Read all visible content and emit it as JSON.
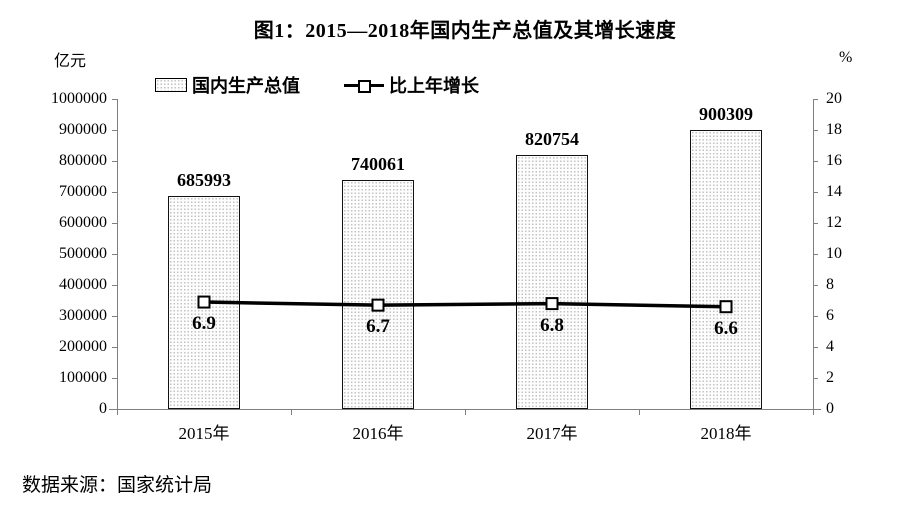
{
  "title": "图1：2015—2018年国内生产总值及其增长速度",
  "source": "数据来源：国家统计局",
  "units": {
    "left": "亿元",
    "right": "%"
  },
  "legend": {
    "bar_label": "国内生产总值",
    "line_label": "比上年增长"
  },
  "colors": {
    "text": "#000000",
    "axis": "#7f7f7f",
    "bar_border": "#111111",
    "bar_fill_base": "#fdfdfd",
    "bar_fill_dots": "#c4c4c4",
    "line": "#000000",
    "marker_fill": "#ffffff"
  },
  "chart_data": {
    "type": "bar",
    "subtype": "bar+line combo",
    "title": "图1：2015—2018年国内生产总值及其增长速度",
    "categories": [
      "2015年",
      "2016年",
      "2017年",
      "2018年"
    ],
    "series": [
      {
        "name": "国内生产总值",
        "type": "bar",
        "axis": "left",
        "unit": "亿元",
        "values": [
          685993,
          740061,
          820754,
          900309
        ]
      },
      {
        "name": "比上年增长",
        "type": "line",
        "axis": "right",
        "unit": "%",
        "values": [
          6.9,
          6.7,
          6.8,
          6.6
        ]
      }
    ],
    "left_axis": {
      "label": "亿元",
      "min": 0,
      "max": 1000000,
      "step": 100000
    },
    "right_axis": {
      "label": "%",
      "min": 0,
      "max": 20,
      "step": 2
    },
    "grid": false,
    "legend_position": "top",
    "data_labels": true
  }
}
